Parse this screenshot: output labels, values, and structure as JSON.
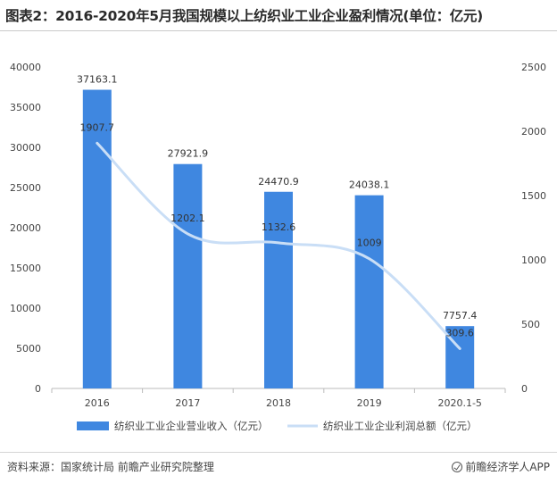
{
  "title": "图表2：2016-2020年5月我国规模以上纺织业工业企业盈利情况(单位：亿元)",
  "source": "资料来源：国家统计局 前瞻产业研究院整理",
  "brand": "前瞻经济学人APP",
  "colors": {
    "bar": "#3f87e0",
    "line": "#c9def6",
    "axis": "#bbbbbb",
    "text": "#444444"
  },
  "chart_data": {
    "type": "bar",
    "categories": [
      "2016",
      "2017",
      "2018",
      "2019",
      "2020.1-5"
    ],
    "series": [
      {
        "name": "纺织业工业企业营业收入（亿元）",
        "type": "bar",
        "axis": "left",
        "values": [
          37163.1,
          27921.9,
          24470.9,
          24038.1,
          7757.4
        ],
        "labels": [
          "37163.1",
          "27921.9",
          "24470.9",
          "24038.1",
          "7757.4"
        ]
      },
      {
        "name": "纺织业工业企业利润总额（亿元）",
        "type": "line",
        "axis": "right",
        "values": [
          1907.7,
          1202.1,
          1132.6,
          1009,
          309.6
        ],
        "labels": [
          "1907.7",
          "1202.1",
          "1132.6",
          "1009",
          "309.6"
        ]
      }
    ],
    "y_left": {
      "min": 0,
      "max": 40000,
      "ticks": [
        "0",
        "5000",
        "10000",
        "15000",
        "20000",
        "25000",
        "30000",
        "35000",
        "40000"
      ]
    },
    "y_right": {
      "min": 0,
      "max": 2500,
      "ticks": [
        "0",
        "500",
        "1000",
        "1500",
        "2000",
        "2500"
      ]
    },
    "legend_position": "bottom",
    "grid": false
  }
}
